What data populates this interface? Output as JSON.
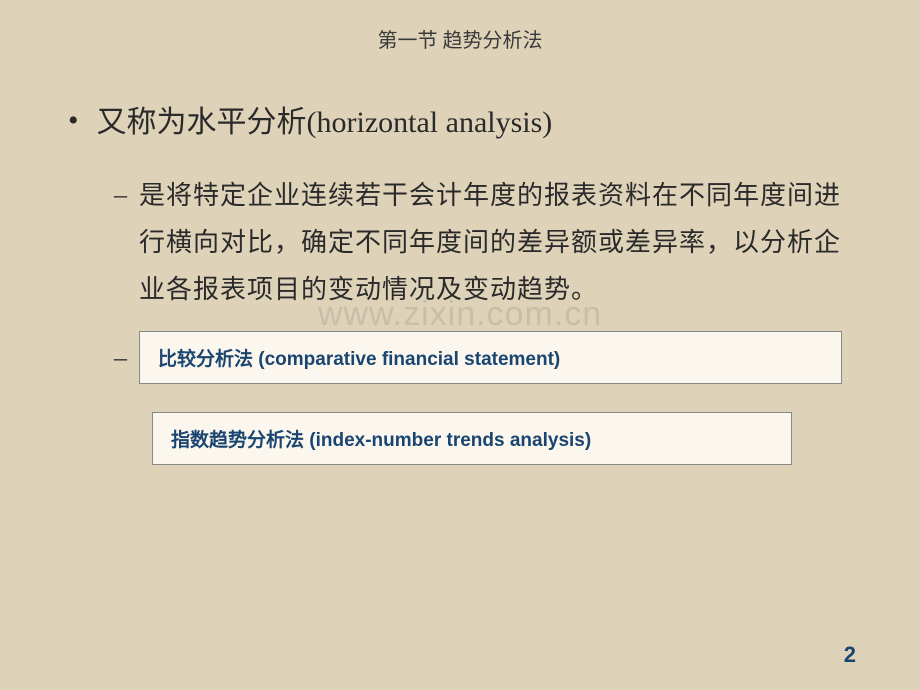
{
  "slide": {
    "title": "第一节  趋势分析法",
    "main_bullet": "又称为水平分析(horizontal analysis)",
    "sub_bullet": "是将特定企业连续若干会计年度的报表资料在不同年度间进行横向对比，确定不同年度间的差异额或差异率，以分析企业各报表项目的变动情况及变动趋势。",
    "method_box_1": "比较分析法 (comparative financial statement)",
    "method_box_2": "指数趋势分析法 (index-number trends analysis)",
    "watermark": "www.zixin.com.cn",
    "page_number": "2"
  },
  "styling": {
    "background_color": "#ded3b9",
    "title_color": "#3a3a3a",
    "text_color": "#2a2a2a",
    "box_bg_color": "#fbf6ee",
    "box_border_color": "#888",
    "box_text_color": "#1a4570",
    "page_number_color": "#1a4570",
    "title_fontsize": 20,
    "main_bullet_fontsize": 30,
    "sub_bullet_fontsize": 26,
    "box_fontsize": 19,
    "page_number_fontsize": 22
  }
}
